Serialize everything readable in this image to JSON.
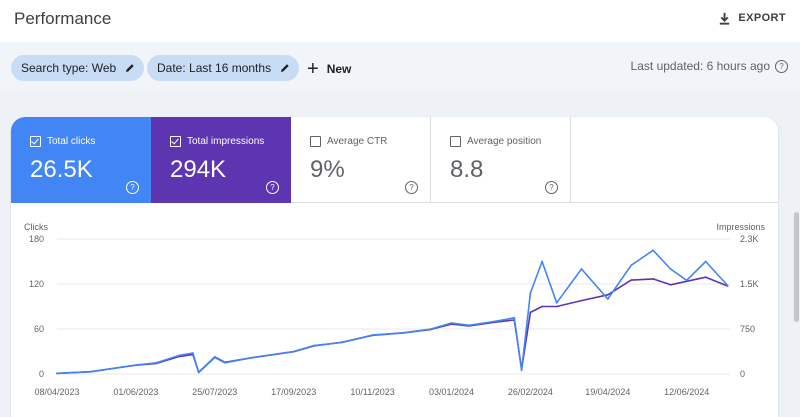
{
  "header": {
    "title": "Performance",
    "export_label": "EXPORT"
  },
  "filters": {
    "search_type": "Search type: Web",
    "date": "Date: Last 16 months",
    "new_label": "New",
    "last_updated": "Last updated: 6 hours ago"
  },
  "metrics": [
    {
      "label": "Total clicks",
      "value": "26.5K",
      "checked": true,
      "color": "#4285f4"
    },
    {
      "label": "Total impressions",
      "value": "294K",
      "checked": true,
      "color": "#5e35b1"
    },
    {
      "label": "Average CTR",
      "value": "9%",
      "checked": false
    },
    {
      "label": "Average position",
      "value": "8.8",
      "checked": false
    }
  ],
  "chart_data": {
    "type": "line",
    "ylabel_left": "Clicks",
    "ylabel_right": "Impressions",
    "yticks_left": [
      "180",
      "120",
      "60",
      "0"
    ],
    "yticks_right": [
      "2.3K",
      "1.5K",
      "750",
      "0"
    ],
    "ylim_left": [
      0,
      180
    ],
    "ylim_right": [
      0,
      2300
    ],
    "xticks": [
      "08/04/2023",
      "01/06/2023",
      "25/07/2023",
      "17/09/2023",
      "10/11/2023",
      "03/01/2024",
      "26/02/2024",
      "19/04/2024",
      "12/06/2024"
    ],
    "grid": true,
    "series": [
      {
        "name": "Clicks",
        "color": "#4285f4",
        "axis": "left",
        "x": [
          "08/04/2023",
          "01/05/2023",
          "01/06/2023",
          "15/06/2023",
          "01/07/2023",
          "10/07/2023",
          "14/07/2023",
          "25/07/2023",
          "01/08/2023",
          "20/08/2023",
          "17/09/2023",
          "01/10/2023",
          "20/10/2023",
          "10/11/2023",
          "01/12/2023",
          "20/12/2023",
          "03/01/2024",
          "15/01/2024",
          "01/02/2024",
          "15/02/2024",
          "20/02/2024",
          "26/02/2024",
          "05/03/2024",
          "15/03/2024",
          "01/04/2024",
          "19/04/2024",
          "05/05/2024",
          "20/05/2024",
          "01/06/2024",
          "12/06/2024",
          "25/06/2024",
          "10/07/2024"
        ],
        "values": [
          1,
          3,
          12,
          15,
          25,
          28,
          2,
          22,
          15,
          22,
          30,
          38,
          42,
          52,
          55,
          60,
          68,
          65,
          70,
          75,
          5,
          108,
          150,
          95,
          140,
          100,
          145,
          165,
          140,
          125,
          150,
          118
        ]
      },
      {
        "name": "Impressions",
        "color": "#5e35b1",
        "axis": "right",
        "x": [
          "08/04/2023",
          "01/05/2023",
          "01/06/2023",
          "15/06/2023",
          "01/07/2023",
          "10/07/2023",
          "14/07/2023",
          "25/07/2023",
          "01/08/2023",
          "20/08/2023",
          "17/09/2023",
          "01/10/2023",
          "20/10/2023",
          "10/11/2023",
          "01/12/2023",
          "20/12/2023",
          "03/01/2024",
          "15/01/2024",
          "01/02/2024",
          "15/02/2024",
          "20/02/2024",
          "26/02/2024",
          "05/03/2024",
          "15/03/2024",
          "01/04/2024",
          "19/04/2024",
          "05/05/2024",
          "20/05/2024",
          "01/06/2024",
          "12/06/2024",
          "25/06/2024",
          "10/07/2024"
        ],
        "values": [
          10,
          40,
          150,
          180,
          300,
          330,
          30,
          290,
          200,
          280,
          380,
          480,
          540,
          660,
          700,
          760,
          850,
          820,
          880,
          920,
          80,
          1050,
          1150,
          1150,
          1250,
          1350,
          1600,
          1620,
          1520,
          1580,
          1650,
          1500
        ]
      }
    ]
  }
}
